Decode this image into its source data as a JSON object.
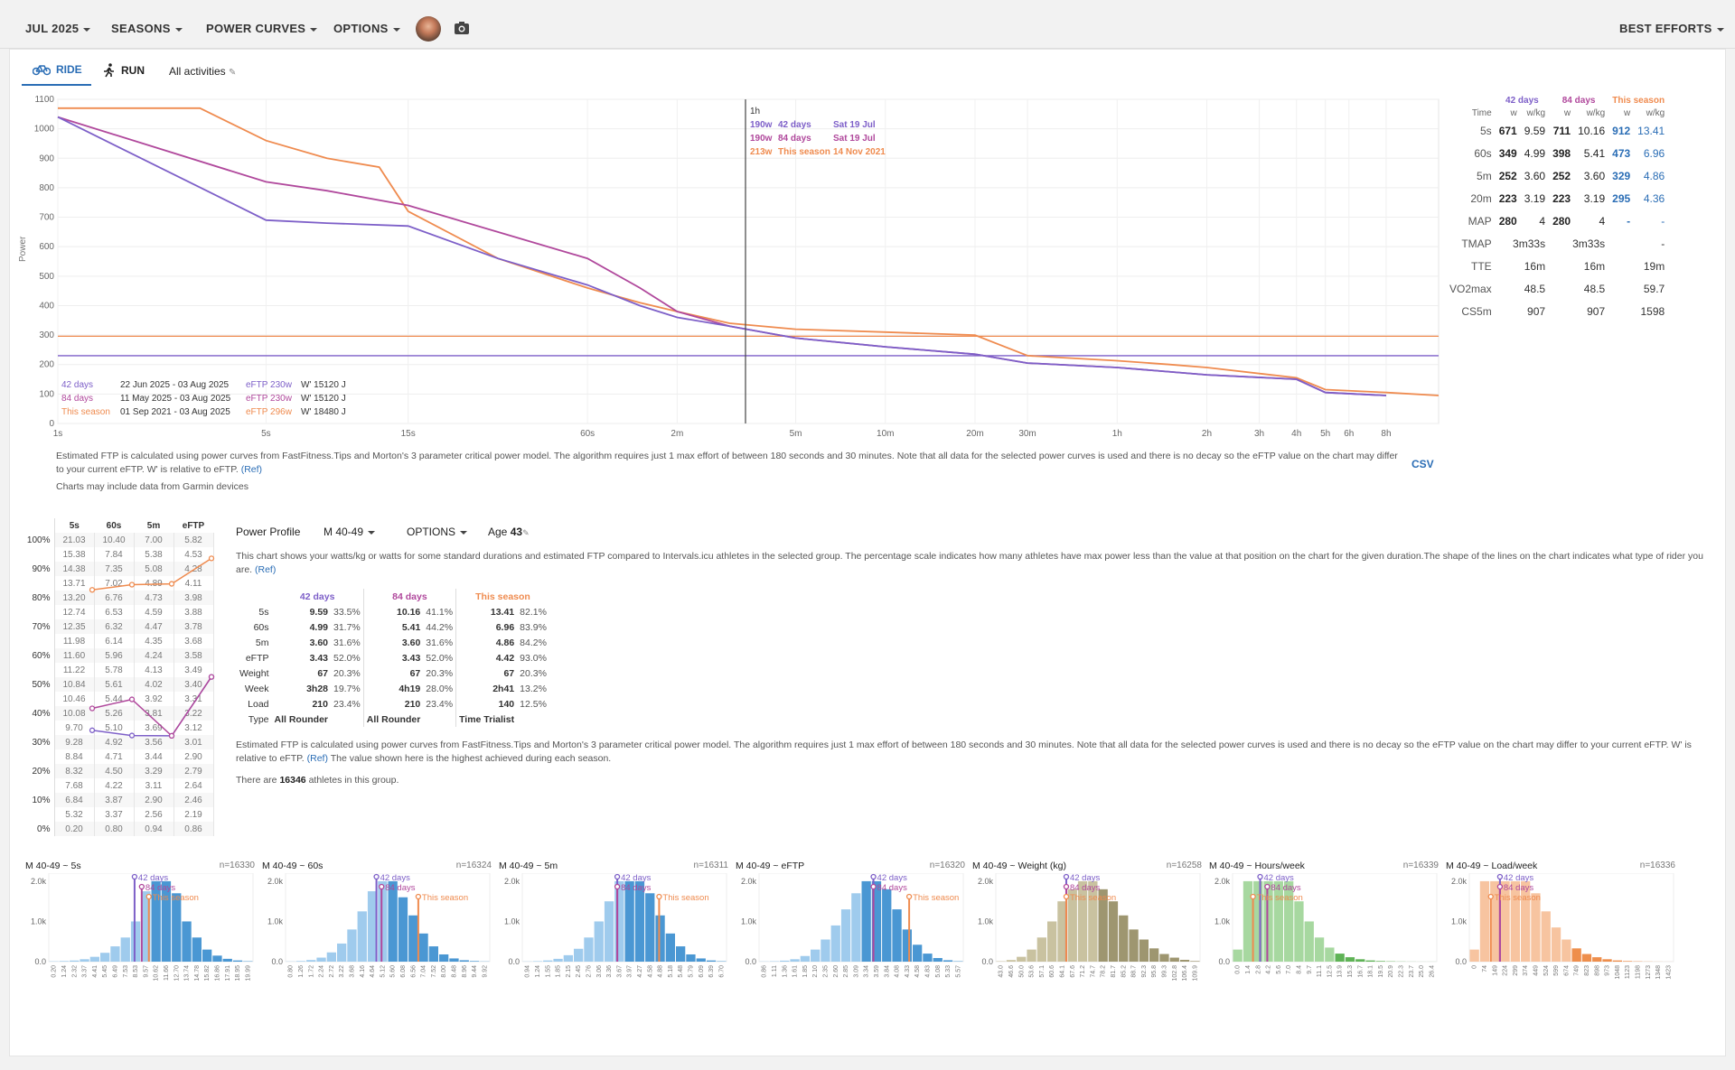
{
  "topbar": {
    "month": "JUL 2025",
    "seasons": "SEASONS",
    "power_curves": "POWER CURVES",
    "options": "OPTIONS",
    "best_efforts": "BEST EFFORTS"
  },
  "tabs": {
    "ride": "RIDE",
    "run": "RUN",
    "all_activities": "All activities"
  },
  "colors": {
    "d42": "#7d5fc8",
    "d84": "#b0489c",
    "season": "#ef8b4f",
    "accent": "#2a6db5"
  },
  "power_curve": {
    "ylabel": "Power",
    "yticks": [
      "0",
      "100",
      "200",
      "300",
      "400",
      "500",
      "600",
      "700",
      "800",
      "900",
      "1000",
      "1100"
    ],
    "xticks": [
      "1s",
      "5s",
      "15s",
      "60s",
      "2m",
      "5m",
      "10m",
      "20m",
      "30m",
      "1h",
      "2h",
      "3h",
      "4h",
      "5h",
      "6h",
      "8h"
    ],
    "tooltip": {
      "time": "1h",
      "rows": [
        {
          "watts": "190w",
          "label": "42 days",
          "date": "Sat 19 Jul"
        },
        {
          "watts": "190w",
          "label": "84 days",
          "date": "Sat 19 Jul"
        },
        {
          "watts": "213w",
          "label": "This season",
          "date": "14 Nov 2021"
        }
      ]
    },
    "legend": [
      {
        "label": "42 days",
        "range": "22 Jun 2025  - 03 Aug 2025",
        "eftp": "eFTP 230w",
        "w": "W' 15120 J"
      },
      {
        "label": "84 days",
        "range": "11 May 2025 - 03 Aug 2025",
        "eftp": "eFTP 230w",
        "w": "W' 15120 J"
      },
      {
        "label": "This season",
        "range": "01 Sep 2021  - 03 Aug 2025",
        "eftp": "eFTP 296w",
        "w": "W' 18480 J"
      }
    ],
    "eftp_lines": [
      230,
      296
    ],
    "series": [
      {
        "name": "42 days",
        "points": [
          [
            1,
            1040
          ],
          [
            5,
            690
          ],
          [
            8,
            680
          ],
          [
            15,
            670
          ],
          [
            30,
            560
          ],
          [
            60,
            470
          ],
          [
            90,
            400
          ],
          [
            120,
            360
          ],
          [
            180,
            330
          ],
          [
            300,
            290
          ],
          [
            600,
            260
          ],
          [
            1200,
            235
          ],
          [
            1800,
            205
          ],
          [
            3600,
            190
          ],
          [
            7200,
            165
          ],
          [
            14400,
            150
          ],
          [
            18000,
            105
          ],
          [
            28800,
            95
          ]
        ]
      },
      {
        "name": "84 days",
        "points": [
          [
            1,
            1040
          ],
          [
            5,
            820
          ],
          [
            8,
            790
          ],
          [
            15,
            740
          ],
          [
            30,
            650
          ],
          [
            60,
            560
          ],
          [
            90,
            460
          ],
          [
            120,
            380
          ],
          [
            180,
            330
          ],
          [
            300,
            290
          ],
          [
            600,
            260
          ],
          [
            1200,
            235
          ],
          [
            1800,
            205
          ],
          [
            3600,
            190
          ],
          [
            7200,
            165
          ],
          [
            14400,
            150
          ],
          [
            18000,
            105
          ],
          [
            28800,
            95
          ]
        ]
      },
      {
        "name": "This season",
        "points": [
          [
            1,
            1070
          ],
          [
            3,
            1070
          ],
          [
            5,
            960
          ],
          [
            8,
            900
          ],
          [
            12,
            870
          ],
          [
            15,
            720
          ],
          [
            30,
            560
          ],
          [
            60,
            460
          ],
          [
            90,
            410
          ],
          [
            120,
            380
          ],
          [
            180,
            340
          ],
          [
            300,
            320
          ],
          [
            600,
            310
          ],
          [
            1200,
            300
          ],
          [
            1800,
            230
          ],
          [
            3600,
            213
          ],
          [
            5400,
            200
          ],
          [
            7200,
            190
          ],
          [
            14400,
            155
          ],
          [
            18000,
            115
          ],
          [
            28800,
            105
          ],
          [
            43200,
            95
          ]
        ]
      }
    ]
  },
  "notes": {
    "eftp": "Estimated FTP is calculated using power curves from FastFitness.Tips and Morton's 3 parameter critical power model. The algorithm requires just 1 max effort of between 180 seconds and 30 minutes. Note that all data for the selected power curves is used and there is no decay so the eFTP value on the chart may differ to your current eFTP. W' is relative to eFTP.",
    "ref": "(Ref)",
    "garmin": "Charts may include data from Garmin devices",
    "csv": "CSV"
  },
  "best_efforts": {
    "groups": [
      "42 days",
      "84 days",
      "This season"
    ],
    "units": [
      "w",
      "w/kg"
    ],
    "time_label": "Time",
    "rows": [
      {
        "label": "5s",
        "v": [
          "671",
          "9.59",
          "711",
          "10.16",
          "912",
          "13.41"
        ]
      },
      {
        "label": "60s",
        "v": [
          "349",
          "4.99",
          "398",
          "5.41",
          "473",
          "6.96"
        ]
      },
      {
        "label": "5m",
        "v": [
          "252",
          "3.60",
          "252",
          "3.60",
          "329",
          "4.86"
        ]
      },
      {
        "label": "20m",
        "v": [
          "223",
          "3.19",
          "223",
          "3.19",
          "295",
          "4.36"
        ]
      },
      {
        "label": "MAP",
        "v": [
          "280",
          "4",
          "280",
          "4",
          "-",
          "-"
        ]
      }
    ],
    "extra": [
      {
        "label": "TMAP",
        "v": [
          "3m33s",
          "3m33s",
          "-"
        ]
      },
      {
        "label": "TTE",
        "v": [
          "16m",
          "16m",
          "19m"
        ]
      },
      {
        "label": "VO2max",
        "v": [
          "48.5",
          "48.5",
          "59.7"
        ]
      },
      {
        "label": "CS5m",
        "v": [
          "907",
          "907",
          "1598"
        ]
      }
    ]
  },
  "profile_table": {
    "headers": [
      "5s",
      "60s",
      "5m",
      "eFTP"
    ],
    "rows": [
      [
        "100%",
        "21.03",
        "10.40",
        "7.00",
        "5.82"
      ],
      [
        "",
        "15.38",
        "7.84",
        "5.38",
        "4.53"
      ],
      [
        "90%",
        "14.38",
        "7.35",
        "5.08",
        "4.28"
      ],
      [
        "",
        "13.71",
        "7.02",
        "4.89",
        "4.11"
      ],
      [
        "80%",
        "13.20",
        "6.76",
        "4.73",
        "3.98"
      ],
      [
        "",
        "12.74",
        "6.53",
        "4.59",
        "3.88"
      ],
      [
        "70%",
        "12.35",
        "6.32",
        "4.47",
        "3.78"
      ],
      [
        "",
        "11.98",
        "6.14",
        "4.35",
        "3.68"
      ],
      [
        "60%",
        "11.60",
        "5.96",
        "4.24",
        "3.58"
      ],
      [
        "",
        "11.22",
        "5.78",
        "4.13",
        "3.49"
      ],
      [
        "50%",
        "10.84",
        "5.61",
        "4.02",
        "3.40"
      ],
      [
        "",
        "10.46",
        "5.44",
        "3.92",
        "3.31"
      ],
      [
        "40%",
        "10.08",
        "5.26",
        "3.81",
        "3.22"
      ],
      [
        "",
        "9.70",
        "5.10",
        "3.69",
        "3.12"
      ],
      [
        "30%",
        "9.28",
        "4.92",
        "3.56",
        "3.01"
      ],
      [
        "",
        "8.84",
        "4.71",
        "3.44",
        "2.90"
      ],
      [
        "20%",
        "8.32",
        "4.50",
        "3.29",
        "2.79"
      ],
      [
        "",
        "7.68",
        "4.22",
        "3.11",
        "2.64"
      ],
      [
        "10%",
        "6.84",
        "3.87",
        "2.90",
        "2.46"
      ],
      [
        "",
        "5.32",
        "3.37",
        "2.56",
        "2.19"
      ],
      [
        "0%",
        "0.20",
        "0.80",
        "0.94",
        "0.86"
      ]
    ],
    "percentiles": {
      "42 days": [
        33.5,
        31.7,
        31.6,
        52.0
      ],
      "84 days": [
        41.1,
        44.2,
        31.6,
        52.0
      ],
      "This season": [
        82.1,
        83.9,
        84.2,
        93.0
      ]
    }
  },
  "power_profile": {
    "title": "Power Profile",
    "group": "M 40-49",
    "options": "OPTIONS",
    "age_label": "Age",
    "age": "43",
    "desc": "This chart shows your watts/kg or watts for some standard durations and estimated FTP compared to Intervals.icu athletes in the selected group. The percentage scale indicates how many athletes have max power less than the value at that position on the chart for the given duration.The shape of the lines on the chart indicates what type of rider you are.",
    "ref": "(Ref)",
    "groups": [
      "42 days",
      "84 days",
      "This season"
    ],
    "rows": [
      {
        "label": "5s",
        "v": [
          "9.59",
          "33.5%",
          "10.16",
          "41.1%",
          "13.41",
          "82.1%"
        ]
      },
      {
        "label": "60s",
        "v": [
          "4.99",
          "31.7%",
          "5.41",
          "44.2%",
          "6.96",
          "83.9%"
        ]
      },
      {
        "label": "5m",
        "v": [
          "3.60",
          "31.6%",
          "3.60",
          "31.6%",
          "4.86",
          "84.2%"
        ]
      },
      {
        "label": "eFTP",
        "v": [
          "3.43",
          "52.0%",
          "3.43",
          "52.0%",
          "4.42",
          "93.0%"
        ]
      },
      {
        "label": "Weight",
        "v": [
          "67",
          "20.3%",
          "67",
          "20.3%",
          "67",
          "20.3%"
        ]
      },
      {
        "label": "Week",
        "v": [
          "3h28",
          "19.7%",
          "4h19",
          "28.0%",
          "2h41",
          "13.2%"
        ]
      },
      {
        "label": "Load",
        "v": [
          "210",
          "23.4%",
          "210",
          "23.4%",
          "140",
          "12.5%"
        ]
      },
      {
        "label": "Type",
        "v": [
          "All Rounder",
          "",
          "All Rounder",
          "",
          "Time Trialist",
          ""
        ]
      }
    ],
    "note": "Estimated FTP is calculated using power curves from FastFitness.Tips and Morton's 3 parameter critical power model. The algorithm requires just 1 max effort of between 180 seconds and 30 minutes. Note that all data for the selected power curves is used and there is no decay so the eFTP value on the chart may differ to your current eFTP. W' is relative to eFTP.",
    "note2": "The value shown here is the highest achieved during each season.",
    "athletes_pre": "There are",
    "athletes": "16346",
    "athletes_post": "athletes in this group."
  },
  "histograms": [
    {
      "title": "M 40-49 ~ 5s",
      "n": "n=16330",
      "color": "blue",
      "ticks": [
        "0.20",
        "1.24",
        "2.32",
        "3.37",
        "4.41",
        "5.45",
        "6.49",
        "7.53",
        "8.53",
        "9.57",
        "10.62",
        "11.66",
        "12.70",
        "13.74",
        "14.78",
        "15.82",
        "16.86",
        "17.91",
        "18.95",
        "19.99"
      ],
      "values": [
        8,
        15,
        28,
        60,
        120,
        220,
        380,
        600,
        1000,
        1750,
        2000,
        2000,
        1700,
        1000,
        600,
        300,
        150,
        70,
        30,
        10
      ],
      "marks": [
        7.9,
        8.6,
        9.3
      ]
    },
    {
      "title": "M 40-49 ~ 60s",
      "n": "n=16324",
      "color": "blue",
      "ticks": [
        "0.80",
        "1.26",
        "1.72",
        "2.24",
        "2.72",
        "3.22",
        "3.68",
        "4.16",
        "4.64",
        "5.12",
        "5.60",
        "6.08",
        "6.56",
        "7.04",
        "7.52",
        "8.00",
        "8.48",
        "8.96",
        "9.44",
        "9.92"
      ],
      "values": [
        5,
        15,
        40,
        100,
        230,
        450,
        800,
        1250,
        1750,
        2000,
        2000,
        1600,
        1150,
        700,
        380,
        180,
        80,
        35,
        15,
        5
      ],
      "marks": [
        8.4,
        8.9,
        12.5
      ]
    },
    {
      "title": "M 40-49 ~ 5m",
      "n": "n=16311",
      "color": "blue",
      "ticks": [
        "0.94",
        "1.24",
        "1.55",
        "1.85",
        "2.15",
        "2.45",
        "2.76",
        "3.06",
        "3.36",
        "3.67",
        "3.97",
        "4.27",
        "4.58",
        "4.88",
        "5.18",
        "5.48",
        "5.79",
        "6.09",
        "6.39",
        "6.70"
      ],
      "values": [
        5,
        12,
        30,
        70,
        160,
        320,
        600,
        1000,
        1500,
        2000,
        2000,
        2000,
        1700,
        1150,
        700,
        380,
        180,
        80,
        30,
        10
      ],
      "marks": [
        8.8,
        8.8,
        12.9
      ]
    },
    {
      "title": "M 40-49 ~ eFTP",
      "n": "n=16320",
      "color": "blue",
      "ticks": [
        "0.86",
        "1.11",
        "1.36",
        "1.61",
        "1.85",
        "2.10",
        "2.35",
        "2.60",
        "2.85",
        "3.09",
        "3.34",
        "3.59",
        "3.84",
        "4.08",
        "4.33",
        "4.58",
        "4.83",
        "5.08",
        "5.33",
        "5.57"
      ],
      "values": [
        5,
        10,
        25,
        60,
        140,
        300,
        550,
        900,
        1300,
        1700,
        2000,
        2000,
        1800,
        1300,
        800,
        420,
        200,
        90,
        35,
        10
      ],
      "marks": [
        10.7,
        10.7,
        14.2
      ]
    },
    {
      "title": "M 40-49 ~ Weight (kg)",
      "n": "n=16258",
      "color": "olive",
      "ticks": [
        "43.0",
        "46.6",
        "50.0",
        "53.6",
        "57.1",
        "60.6",
        "64.1",
        "67.6",
        "71.2",
        "74.7",
        "78.2",
        "81.7",
        "85.2",
        "88.7",
        "92.3",
        "95.8",
        "99.3",
        "102.8",
        "106.4",
        "109.9"
      ],
      "values": [
        10,
        40,
        120,
        300,
        600,
        1000,
        1500,
        1800,
        2000,
        2000,
        1800,
        1500,
        1150,
        800,
        550,
        330,
        190,
        100,
        45,
        15
      ],
      "marks": [
        6.4,
        6.4,
        6.4
      ]
    },
    {
      "title": "M 40-49 ~ Hours/week",
      "n": "n=16339",
      "color": "green",
      "ticks": [
        "0.0",
        "1.4",
        "2.8",
        "4.2",
        "5.6",
        "7.0",
        "8.4",
        "9.7",
        "11.1",
        "12.5",
        "13.9",
        "15.3",
        "16.7",
        "18.1",
        "19.5",
        "20.9",
        "22.3",
        "23.7",
        "25.0",
        "26.4"
      ],
      "values": [
        300,
        2000,
        2000,
        2000,
        2000,
        2000,
        1500,
        1000,
        600,
        350,
        200,
        110,
        60,
        30,
        15,
        8,
        4,
        2,
        1,
        1
      ],
      "marks": [
        2.2,
        2.9,
        1.5
      ]
    },
    {
      "title": "M 40-49 ~ Load/week",
      "n": "n=16336",
      "color": "orange",
      "ticks": [
        "0",
        "74",
        "149",
        "224",
        "299",
        "374",
        "449",
        "524",
        "599",
        "674",
        "749",
        "823",
        "898",
        "973",
        "1048",
        "1123",
        "1198",
        "1273",
        "1348",
        "1423"
      ],
      "values": [
        300,
        2000,
        2000,
        2000,
        2000,
        2000,
        1700,
        1250,
        850,
        550,
        330,
        190,
        110,
        60,
        30,
        15,
        8,
        4,
        2,
        1
      ],
      "marks": [
        2.5,
        2.5,
        1.6
      ]
    }
  ],
  "hist_yticks": [
    "0.0",
    "1.0k",
    "2.0k"
  ],
  "hist_labels": [
    "42 days",
    "84 days",
    "This season"
  ]
}
